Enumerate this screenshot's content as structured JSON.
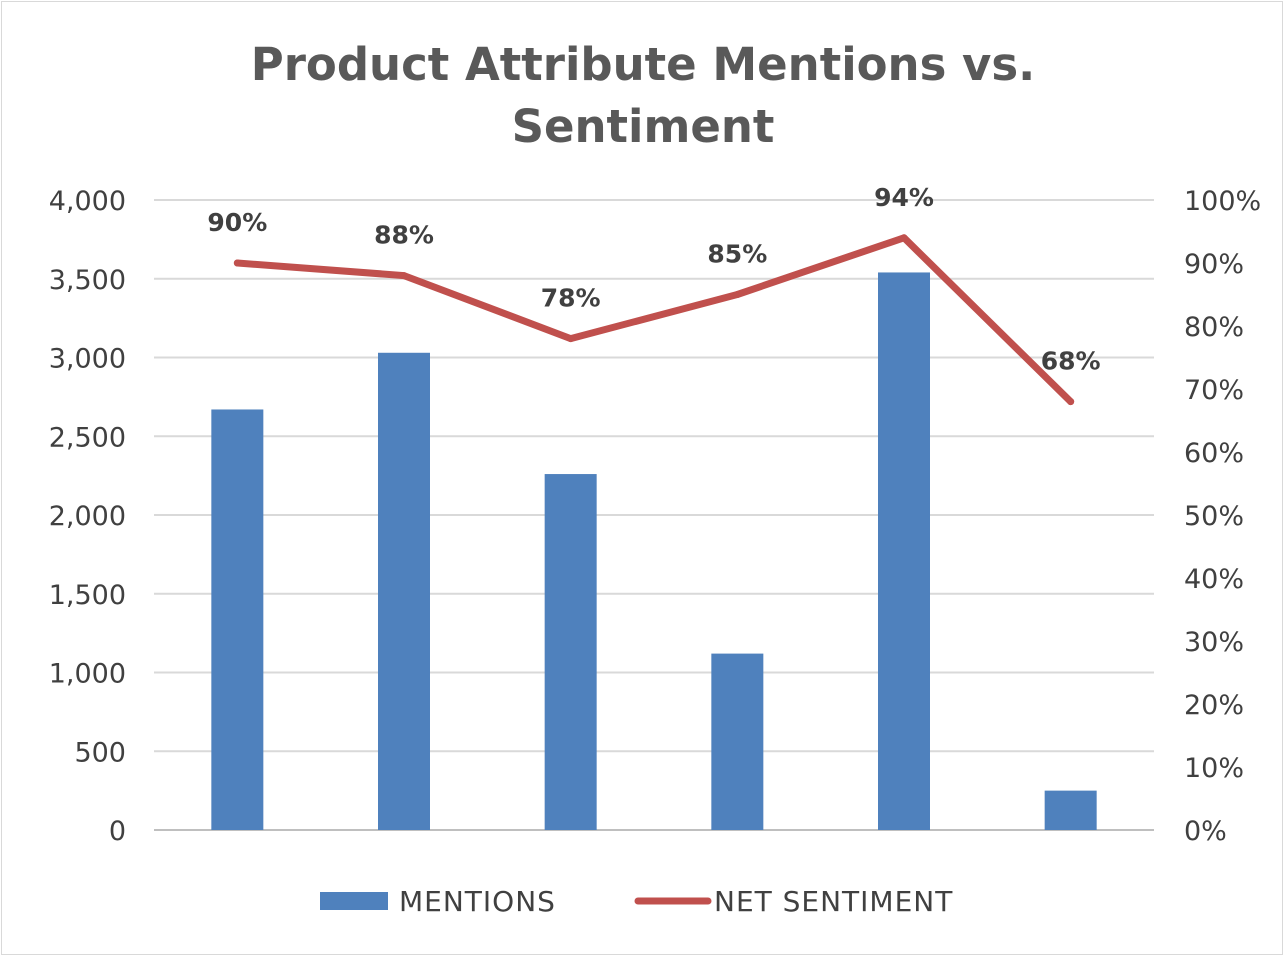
{
  "chart_data": {
    "type": "bar",
    "title_lines": [
      "Product Attribute Mentions vs.",
      "Sentiment"
    ],
    "categories": [
      "",
      "",
      "",
      "",
      "",
      ""
    ],
    "series": [
      {
        "name": "MENTIONS",
        "kind": "bar",
        "axis": "left",
        "color": "#4f81bd",
        "values": [
          2670,
          3030,
          2260,
          1120,
          3540,
          250
        ]
      },
      {
        "name": "NET SENTIMENT",
        "kind": "line",
        "axis": "right",
        "color": "#c0504d",
        "values": [
          0.9,
          0.88,
          0.78,
          0.85,
          0.94,
          0.68
        ],
        "data_labels": [
          "90%",
          "88%",
          "78%",
          "85%",
          "94%",
          "68%"
        ]
      }
    ],
    "y_left": {
      "ylim": [
        0,
        4000
      ],
      "ticks": [
        0,
        500,
        1000,
        1500,
        2000,
        2500,
        3000,
        3500,
        4000
      ],
      "tick_labels": [
        "0",
        "500",
        "1,000",
        "1,500",
        "2,000",
        "2,500",
        "3,000",
        "3,500",
        "4,000"
      ]
    },
    "y_right": {
      "ylim": [
        0,
        1
      ],
      "ticks": [
        0,
        0.1,
        0.2,
        0.3,
        0.4,
        0.5,
        0.6,
        0.7,
        0.8,
        0.9,
        1.0
      ],
      "tick_labels": [
        "0%",
        "10%",
        "20%",
        "30%",
        "40%",
        "50%",
        "60%",
        "70%",
        "80%",
        "90%",
        "100%"
      ]
    },
    "grid": true,
    "legend": "bottom"
  }
}
